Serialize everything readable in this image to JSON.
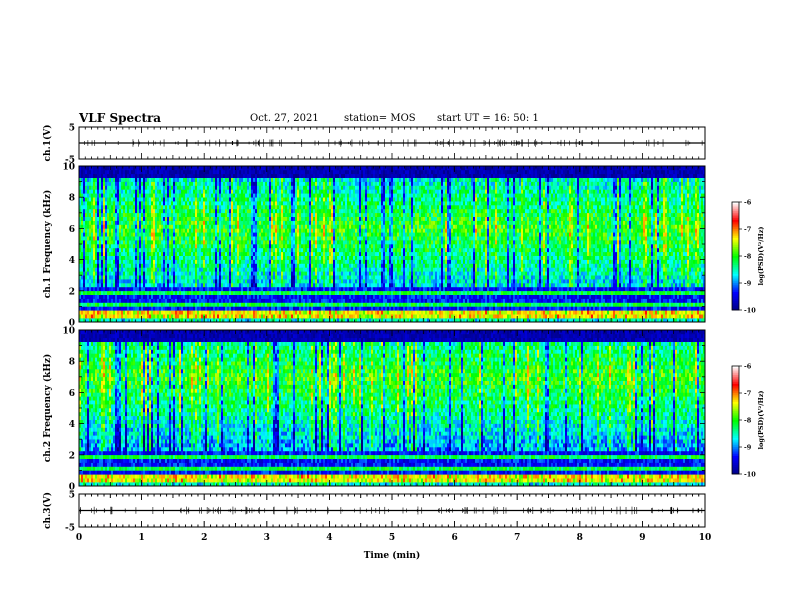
{
  "header": {
    "title": "VLF Spectra",
    "date": "Oct. 27, 2021",
    "station": "station= MOS",
    "start": "start  UT  =   16: 50: 1"
  },
  "chart_data": [
    {
      "type": "line",
      "panel": "ch1-waveform",
      "ylabel": "ch.1(V)",
      "yticks": [
        "5",
        "-5"
      ],
      "ylim": [
        -5,
        5
      ],
      "xlim": [
        0,
        10
      ],
      "series": [
        {
          "values": [
            0,
            0
          ]
        }
      ]
    },
    {
      "type": "heatmap",
      "panel": "ch1-spectrogram",
      "ylabel": "ch.1 Frequency (kHz)",
      "ylim": [
        0,
        10
      ],
      "yticks": [
        "0",
        "2",
        "4",
        "6",
        "8",
        "10"
      ],
      "xlim": [
        0,
        10
      ],
      "colorbar": {
        "label": "log(PSD)(V²/Hz)",
        "min": -10,
        "max": -6,
        "ticks": [
          "-6",
          "-7",
          "-8",
          "-9",
          "-10"
        ]
      },
      "color_scale": [
        "#000080",
        "#0000ff",
        "#00ffff",
        "#00ff00",
        "#ffff00",
        "#ff0000",
        "#ffffff"
      ],
      "band_top_khz": 9.3
    },
    {
      "type": "heatmap",
      "panel": "ch2-spectrogram",
      "ylabel": "ch.2 Frequency (kHz)",
      "ylim": [
        0,
        10
      ],
      "yticks": [
        "0",
        "2",
        "4",
        "6",
        "8",
        "10"
      ],
      "xlim": [
        0,
        10
      ],
      "colorbar": {
        "label": "log(PSD)(V²/Hz)",
        "min": -10,
        "max": -6,
        "ticks": [
          "-6",
          "-7",
          "-8",
          "-9",
          "-10"
        ]
      },
      "color_scale": [
        "#000080",
        "#0000ff",
        "#00ffff",
        "#00ff00",
        "#ffff00",
        "#ff0000",
        "#ffffff"
      ],
      "band_top_khz": 9.2
    },
    {
      "type": "line",
      "panel": "ch3-waveform",
      "ylabel": "ch.3(V)",
      "yticks": [
        "5",
        "-5"
      ],
      "ylim": [
        -5,
        5
      ],
      "xlim": [
        0,
        10
      ],
      "series": [
        {
          "values": [
            0,
            0
          ]
        }
      ]
    }
  ],
  "xaxis": {
    "label": "Time  (min)",
    "ticks": [
      "0",
      "1",
      "2",
      "3",
      "4",
      "5",
      "6",
      "7",
      "8",
      "9",
      "10"
    ]
  }
}
